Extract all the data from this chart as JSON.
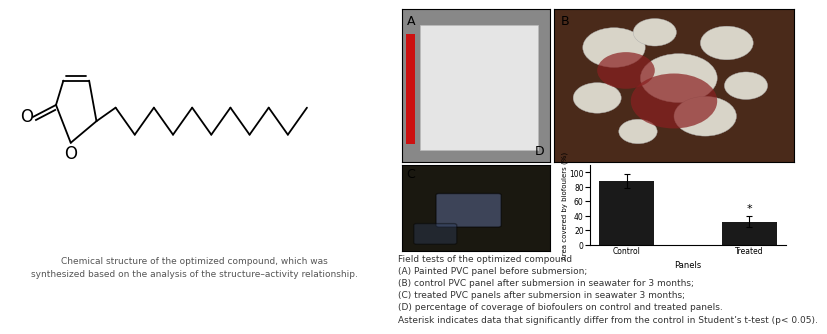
{
  "left_caption": "Chemical structure of the optimized compound, which was\nsynthesized based on the analysis of the structure–activity relationship.",
  "right_caption_lines": [
    "Field tests of the optimized compound",
    "(A) Painted PVC panel before submersion;",
    "(B) control PVC panel after submersion in seawater for 3 months;",
    "(C) treated PVC panels after submersion in seawater 3 months;",
    "(D) percentage of coverage of biofoulers on control and treated panels.",
    "Asterisk indicates data that significantly differ from the control in Student’s t-test (p< 0.05)."
  ],
  "panel_labels": [
    "A",
    "B",
    "C",
    "D"
  ],
  "bar_categories": [
    "Control",
    "Treated"
  ],
  "bar_values": [
    88,
    32
  ],
  "bar_errors": [
    10,
    8
  ],
  "bar_color": "#1a1a1a",
  "xlabel": "Panels",
  "ylabel": "Area covered by biofoulers (%)",
  "ylim": [
    0,
    110
  ],
  "yticks": [
    0,
    20,
    40,
    60,
    80,
    100
  ],
  "background_color": "#ffffff",
  "caption_fontsize": 6.5,
  "panel_label_fontsize": 9,
  "bar_xlabel_fontsize": 6,
  "bar_ylabel_fontsize": 5,
  "bar_tick_fontsize": 5.5
}
